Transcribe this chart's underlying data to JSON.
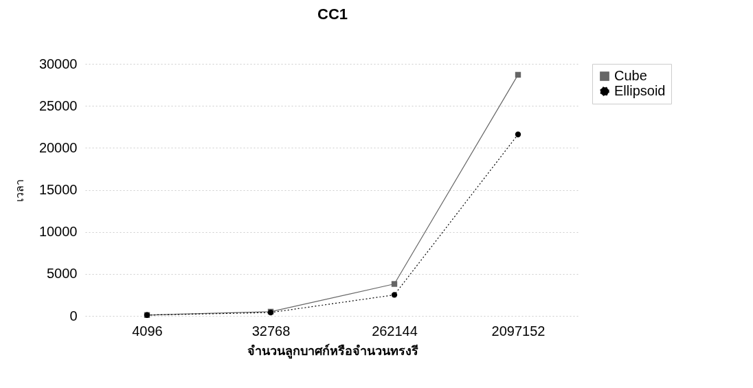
{
  "chart_data": {
    "type": "line",
    "title": "CC1",
    "xlabel": "จำนวนลูกบาศก์หรือจำนวนทรงรี",
    "ylabel": "เวลา",
    "categories": [
      "4096",
      "32768",
      "262144",
      "2097152"
    ],
    "series": [
      {
        "name": "Cube",
        "color": "#666666",
        "marker": "square",
        "line_style": "solid",
        "values": [
          100,
          500,
          3800,
          28700
        ]
      },
      {
        "name": "Ellipsoid",
        "color": "#000000",
        "marker": "circle",
        "line_style": "dotted",
        "values": [
          100,
          400,
          2500,
          21600
        ]
      }
    ],
    "ylim": [
      0,
      30000
    ],
    "yticks": [
      0,
      5000,
      10000,
      15000,
      20000,
      25000,
      30000
    ],
    "grid": "y",
    "legend": "right"
  }
}
